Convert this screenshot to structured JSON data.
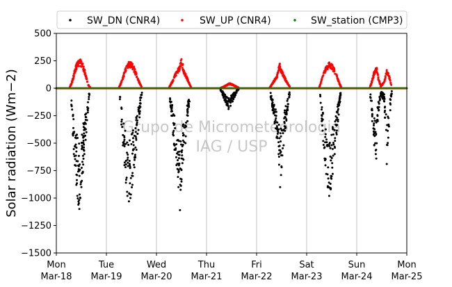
{
  "chart_data": {
    "type": "scatter",
    "title": "",
    "ylabel": "Solar radiation (Wm−2)",
    "xlabel": "",
    "ylim": [
      -1500,
      500
    ],
    "yticks": [
      500,
      250,
      0,
      -250,
      -500,
      -750,
      -1000,
      -1250,
      -1500
    ],
    "xlim": [
      0,
      7
    ],
    "x_units": "days from Mon Mar-18",
    "xtick_labels": [
      {
        "day": "Mon",
        "date": "Mar-18"
      },
      {
        "day": "Tue",
        "date": "Mar-19"
      },
      {
        "day": "Wed",
        "date": "Mar-20"
      },
      {
        "day": "Thu",
        "date": "Mar-21"
      },
      {
        "day": "Fri",
        "date": "Mar-22"
      },
      {
        "day": "Sat",
        "date": "Mar-23"
      },
      {
        "day": "Sun",
        "date": "Mar-24"
      },
      {
        "day": "Mon",
        "date": "Mar-25"
      }
    ],
    "grid": "vertical",
    "legend_position": "top",
    "watermark": [
      "Grupo de Micrometeorologia",
      "IAG / USP"
    ],
    "series": [
      {
        "name": "SW_DN (CNR4)",
        "color": "#000000",
        "marker": "dot",
        "daily_envelope_min": [
          -1100,
          -1030,
          -1110,
          -190,
          -900,
          -980,
          -690
        ]
      },
      {
        "name": "SW_UP (CNR4)",
        "color": "#ff0000",
        "marker": "dot",
        "daily_envelope_max": [
          255,
          240,
          265,
          45,
          220,
          225,
          185
        ]
      },
      {
        "name": "SW_station (CMP3)",
        "color": "#008000",
        "marker": "dot",
        "daily_envelope_max": [
          0,
          0,
          0,
          0,
          0,
          0,
          0
        ]
      }
    ],
    "days": [
      {
        "dn": [
          {
            "x": 0.3,
            "y": -150
          },
          {
            "x": 0.33,
            "y": -420
          },
          {
            "x": 0.35,
            "y": -600
          },
          {
            "x": 0.37,
            "y": -700
          },
          {
            "x": 0.4,
            "y": -880
          },
          {
            "x": 0.42,
            "y": -980
          },
          {
            "x": 0.44,
            "y": -1060
          },
          {
            "x": 0.46,
            "y": -1100
          },
          {
            "x": 0.48,
            "y": -1000
          },
          {
            "x": 0.5,
            "y": -900
          },
          {
            "x": 0.53,
            "y": -760
          },
          {
            "x": 0.56,
            "y": -600
          },
          {
            "x": 0.6,
            "y": -400
          },
          {
            "x": 0.63,
            "y": -220
          },
          {
            "x": 0.66,
            "y": -60
          }
        ],
        "up": [
          {
            "x": 0.27,
            "y": 10
          },
          {
            "x": 0.32,
            "y": 70
          },
          {
            "x": 0.36,
            "y": 150
          },
          {
            "x": 0.4,
            "y": 215
          },
          {
            "x": 0.44,
            "y": 245
          },
          {
            "x": 0.48,
            "y": 255
          },
          {
            "x": 0.52,
            "y": 225
          },
          {
            "x": 0.56,
            "y": 170
          },
          {
            "x": 0.6,
            "y": 100
          },
          {
            "x": 0.64,
            "y": 30
          },
          {
            "x": 0.68,
            "y": 5
          }
        ]
      },
      {
        "dn": [
          {
            "x": 1.27,
            "y": -100
          },
          {
            "x": 1.3,
            "y": -330
          },
          {
            "x": 1.33,
            "y": -520
          },
          {
            "x": 1.36,
            "y": -700
          },
          {
            "x": 1.39,
            "y": -860
          },
          {
            "x": 1.42,
            "y": -980
          },
          {
            "x": 1.45,
            "y": -1030
          },
          {
            "x": 1.48,
            "y": -1000
          },
          {
            "x": 1.52,
            "y": -880
          },
          {
            "x": 1.56,
            "y": -720
          },
          {
            "x": 1.6,
            "y": -560
          },
          {
            "x": 1.64,
            "y": -380
          },
          {
            "x": 1.68,
            "y": -170
          },
          {
            "x": 1.71,
            "y": -40
          }
        ],
        "up": [
          {
            "x": 1.25,
            "y": 5
          },
          {
            "x": 1.3,
            "y": 60
          },
          {
            "x": 1.35,
            "y": 135
          },
          {
            "x": 1.4,
            "y": 200
          },
          {
            "x": 1.45,
            "y": 240
          },
          {
            "x": 1.5,
            "y": 230
          },
          {
            "x": 1.55,
            "y": 190
          },
          {
            "x": 1.6,
            "y": 130
          },
          {
            "x": 1.65,
            "y": 65
          },
          {
            "x": 1.7,
            "y": 15
          }
        ]
      },
      {
        "dn": [
          {
            "x": 2.27,
            "y": -120
          },
          {
            "x": 2.3,
            "y": -250
          },
          {
            "x": 2.33,
            "y": -420
          },
          {
            "x": 2.36,
            "y": -560
          },
          {
            "x": 2.4,
            "y": -700
          },
          {
            "x": 2.44,
            "y": -900
          },
          {
            "x": 2.47,
            "y": -1110
          },
          {
            "x": 2.5,
            "y": -850
          },
          {
            "x": 2.54,
            "y": -650
          },
          {
            "x": 2.58,
            "y": -500
          },
          {
            "x": 2.62,
            "y": -300
          },
          {
            "x": 2.66,
            "y": -120
          }
        ],
        "up": [
          {
            "x": 2.25,
            "y": 5
          },
          {
            "x": 2.3,
            "y": 50
          },
          {
            "x": 2.35,
            "y": 100
          },
          {
            "x": 2.4,
            "y": 150
          },
          {
            "x": 2.45,
            "y": 190
          },
          {
            "x": 2.5,
            "y": 265
          },
          {
            "x": 2.55,
            "y": 160
          },
          {
            "x": 2.6,
            "y": 110
          },
          {
            "x": 2.65,
            "y": 50
          },
          {
            "x": 2.69,
            "y": 10
          }
        ]
      },
      {
        "dn": [
          {
            "x": 3.28,
            "y": -20
          },
          {
            "x": 3.32,
            "y": -60
          },
          {
            "x": 3.36,
            "y": -110
          },
          {
            "x": 3.4,
            "y": -150
          },
          {
            "x": 3.44,
            "y": -190
          },
          {
            "x": 3.48,
            "y": -160
          },
          {
            "x": 3.52,
            "y": -120
          },
          {
            "x": 3.56,
            "y": -80
          },
          {
            "x": 3.6,
            "y": -40
          },
          {
            "x": 3.64,
            "y": -10
          }
        ],
        "up": [
          {
            "x": 3.28,
            "y": 3
          },
          {
            "x": 3.34,
            "y": 15
          },
          {
            "x": 3.4,
            "y": 30
          },
          {
            "x": 3.46,
            "y": 45
          },
          {
            "x": 3.52,
            "y": 35
          },
          {
            "x": 3.58,
            "y": 20
          },
          {
            "x": 3.64,
            "y": 5
          }
        ]
      },
      {
        "dn": [
          {
            "x": 4.28,
            "y": -80
          },
          {
            "x": 4.32,
            "y": -200
          },
          {
            "x": 4.36,
            "y": -320
          },
          {
            "x": 4.4,
            "y": -450
          },
          {
            "x": 4.44,
            "y": -600
          },
          {
            "x": 4.47,
            "y": -900
          },
          {
            "x": 4.5,
            "y": -720
          },
          {
            "x": 4.54,
            "y": -520
          },
          {
            "x": 4.58,
            "y": -360
          },
          {
            "x": 4.62,
            "y": -200
          },
          {
            "x": 4.66,
            "y": -60
          }
        ],
        "up": [
          {
            "x": 4.26,
            "y": 5
          },
          {
            "x": 4.31,
            "y": 40
          },
          {
            "x": 4.36,
            "y": 80
          },
          {
            "x": 4.41,
            "y": 120
          },
          {
            "x": 4.46,
            "y": 220
          },
          {
            "x": 4.51,
            "y": 150
          },
          {
            "x": 4.56,
            "y": 100
          },
          {
            "x": 4.61,
            "y": 55
          },
          {
            "x": 4.66,
            "y": 15
          }
        ]
      },
      {
        "dn": [
          {
            "x": 5.27,
            "y": -60
          },
          {
            "x": 5.3,
            "y": -300
          },
          {
            "x": 5.33,
            "y": -480
          },
          {
            "x": 5.36,
            "y": -640
          },
          {
            "x": 5.39,
            "y": -780
          },
          {
            "x": 5.42,
            "y": -900
          },
          {
            "x": 5.45,
            "y": -980
          },
          {
            "x": 5.48,
            "y": -920
          },
          {
            "x": 5.52,
            "y": -780
          },
          {
            "x": 5.56,
            "y": -600
          },
          {
            "x": 5.6,
            "y": -420
          },
          {
            "x": 5.64,
            "y": -240
          },
          {
            "x": 5.68,
            "y": -60
          }
        ],
        "up": [
          {
            "x": 5.25,
            "y": 5
          },
          {
            "x": 5.3,
            "y": 80
          },
          {
            "x": 5.35,
            "y": 150
          },
          {
            "x": 5.4,
            "y": 200
          },
          {
            "x": 5.45,
            "y": 225
          },
          {
            "x": 5.5,
            "y": 215
          },
          {
            "x": 5.55,
            "y": 180
          },
          {
            "x": 5.6,
            "y": 120
          },
          {
            "x": 5.65,
            "y": 50
          },
          {
            "x": 5.69,
            "y": 10
          }
        ]
      },
      {
        "dn": [
          {
            "x": 6.27,
            "y": -80
          },
          {
            "x": 6.31,
            "y": -300
          },
          {
            "x": 6.35,
            "y": -520
          },
          {
            "x": 6.39,
            "y": -640
          },
          {
            "x": 6.42,
            "y": -300
          },
          {
            "x": 6.48,
            "y": -60
          },
          {
            "x": 6.55,
            "y": -120
          },
          {
            "x": 6.6,
            "y": -690
          },
          {
            "x": 6.63,
            "y": -450
          },
          {
            "x": 6.67,
            "y": -200
          },
          {
            "x": 6.7,
            "y": -50
          }
        ],
        "up": [
          {
            "x": 6.26,
            "y": 5
          },
          {
            "x": 6.3,
            "y": 60
          },
          {
            "x": 6.35,
            "y": 150
          },
          {
            "x": 6.4,
            "y": 185
          },
          {
            "x": 6.43,
            "y": 100
          },
          {
            "x": 6.48,
            "y": 20
          },
          {
            "x": 6.55,
            "y": 60
          },
          {
            "x": 6.6,
            "y": 165
          },
          {
            "x": 6.65,
            "y": 110
          },
          {
            "x": 6.69,
            "y": 30
          }
        ]
      }
    ]
  }
}
